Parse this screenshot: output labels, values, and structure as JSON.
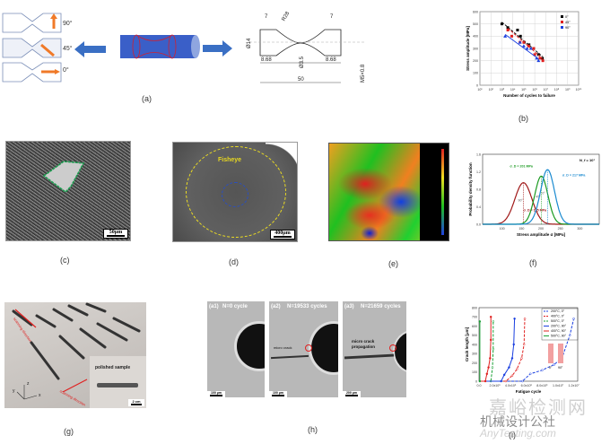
{
  "panels": {
    "a": {
      "label": "(a)",
      "angles": [
        "90°",
        "45°",
        "0°"
      ],
      "drawing": {
        "dims": [
          "7",
          "R28",
          "7",
          "Ø14",
          "Ø3.5",
          "8.68",
          "8.68",
          "50",
          "M5×0.8"
        ]
      }
    },
    "b": {
      "label": "(b)"
    },
    "c": {
      "label": "(c)",
      "scale_bar": "50μm"
    },
    "d": {
      "label": "(d)",
      "annotation": "Fisheye",
      "scale_bar": "400μm"
    },
    "e": {
      "label": "(e)"
    },
    "f": {
      "label": "(f)"
    },
    "g": {
      "label": "(g)",
      "inset": "polished sample",
      "scale_bar": "2 cm",
      "arrow1": "scanning direction",
      "arrow2": "scanning direction",
      "axes": [
        "z",
        "y",
        "x"
      ]
    },
    "h": {
      "label": "(h)",
      "frames": [
        {
          "tag": "(a1)",
          "title": "N=0 cycle",
          "scale_bar": "100 μm",
          "note": ""
        },
        {
          "tag": "(a2)",
          "title": "N=19533 cycles",
          "scale_bar": "100 μm",
          "note": "micro crack"
        },
        {
          "tag": "(a3)",
          "title": "N=21659 cycles",
          "scale_bar": "200 μm",
          "note": "micro crack propagation"
        }
      ]
    },
    "i": {
      "label": "(i)",
      "inset_labels": [
        "0°",
        "90°"
      ]
    }
  },
  "watermark": {
    "line1": "嘉峪检测网",
    "line2": "机械设计公社",
    "line3": "AnyTesting.com"
  },
  "colors": {
    "arrow_blue": "#3a6fc4",
    "orange": "#f07a28",
    "red": "#e0201f",
    "green": "#19a035",
    "blue": "#1a3fe0"
  },
  "chart_data": [
    {
      "id": "b",
      "type": "scatter",
      "xscale": "log",
      "xlim": [
        10,
        10000000000
      ],
      "ylim": [
        0,
        600
      ],
      "xticks": [
        "10¹",
        "10²",
        "10³",
        "10⁴",
        "10⁵",
        "10⁶",
        "10⁷",
        "10⁸",
        "10⁹",
        "10¹⁰"
      ],
      "yticks": [
        0,
        100,
        200,
        300,
        400,
        500,
        600
      ],
      "xlabel": "Number of cycles to failure",
      "ylabel": "Stress amplitude [MPa]",
      "grid": true,
      "legend": "top-right",
      "series": [
        {
          "name": "0°",
          "color": "#000000",
          "marker": "square",
          "x": [
            1000,
            3500,
            27000,
            50000,
            110000,
            300000,
            800000,
            2200000,
            5000000
          ],
          "y": [
            500,
            470,
            450,
            400,
            350,
            330,
            300,
            250,
            220
          ]
        },
        {
          "name": "45°",
          "color": "#e0201f",
          "marker": "square",
          "x": [
            3500,
            8000,
            45000,
            100000,
            280000,
            800000,
            1000000,
            3000000,
            5500000
          ],
          "y": [
            450,
            400,
            350,
            350,
            320,
            300,
            250,
            220,
            200
          ]
        },
        {
          "name": "90°",
          "color": "#1a3fe0",
          "marker": "triangle",
          "x": [
            2000,
            45000,
            100000,
            200000,
            450000,
            1500000,
            2200000
          ],
          "y": [
            400,
            350,
            320,
            300,
            300,
            220,
            200
          ]
        }
      ]
    },
    {
      "id": "f",
      "type": "line",
      "xlim": [
        50,
        350
      ],
      "ylim": [
        0,
        1.6
      ],
      "xticks": [
        100,
        150,
        200,
        250,
        300
      ],
      "yticks": [
        0.0,
        0.4,
        0.8,
        1.2,
        1.6
      ],
      "xlabel": "Stress amplitude σ [MPa]",
      "ylabel": "Probability density function",
      "annotation": "N_f = 10⁷",
      "series": [
        {
          "name": "90°",
          "color": "#a01818",
          "mean": 155,
          "peak": 0.95,
          "sd": 22,
          "mean_label": "σ_D = 155 MPa"
        },
        {
          "name": "45°",
          "color": "#1a9a20",
          "mean": 201,
          "peak": 1.1,
          "sd": 17,
          "mean_label": "σ_D = 201 MPa"
        },
        {
          "name": "0°",
          "color": "#1a8ad0",
          "mean": 217,
          "peak": 1.25,
          "sd": 18,
          "mean_label": "σ_D = 217 MPa"
        }
      ]
    },
    {
      "id": "i",
      "type": "line",
      "xlim": [
        0,
        12500000
      ],
      "ylim": [
        0,
        800
      ],
      "xticks": [
        "0.0",
        "2.0x10⁶",
        "4.0x10⁶",
        "6.0x10⁶",
        "8.0x10⁶",
        "1.0x10⁷",
        "1.2x10⁷"
      ],
      "yticks": [
        0,
        100,
        200,
        300,
        400,
        500,
        600,
        700,
        800
      ],
      "xlabel": "Fatigue cycle",
      "ylabel": "Crack length [μm]",
      "legend": "top-right",
      "series": [
        {
          "name": "200°C, 0°",
          "color": "#1a3fe0",
          "dash": true,
          "x": [
            0,
            5500000,
            6500000,
            8000000,
            9500000,
            10500000,
            11500000,
            12000000
          ],
          "y": [
            0,
            0,
            80,
            120,
            180,
            250,
            500,
            680
          ]
        },
        {
          "name": "400°C, 0°",
          "color": "#e0201f",
          "dash": true,
          "x": [
            0,
            3400000,
            4200000,
            4800000,
            5400000,
            5700000,
            5800000
          ],
          "y": [
            0,
            0,
            60,
            130,
            250,
            400,
            680
          ]
        },
        {
          "name": "500°C, 0°",
          "color": "#19a035",
          "dash": true,
          "x": [
            0,
            1500000,
            1700000,
            1800000,
            1800000
          ],
          "y": [
            0,
            0,
            150,
            350,
            650
          ]
        },
        {
          "name": "200°C, 90°",
          "color": "#1a3fe0",
          "dash": false,
          "x": [
            0,
            2800000,
            3200000,
            3800000,
            4200000,
            4400000,
            4500000
          ],
          "y": [
            0,
            0,
            70,
            150,
            250,
            400,
            680
          ]
        },
        {
          "name": "400°C, 90°",
          "color": "#e0201f",
          "dash": false,
          "x": [
            0,
            800000,
            1000000,
            1200000,
            1400000,
            1500000,
            1500000
          ],
          "y": [
            0,
            0,
            80,
            150,
            250,
            450,
            700
          ]
        },
        {
          "name": "500°C, 90°",
          "color": "#19a035",
          "dash": false,
          "x": [
            0,
            100000,
            100000
          ],
          "y": [
            0,
            0,
            650
          ]
        }
      ]
    }
  ]
}
